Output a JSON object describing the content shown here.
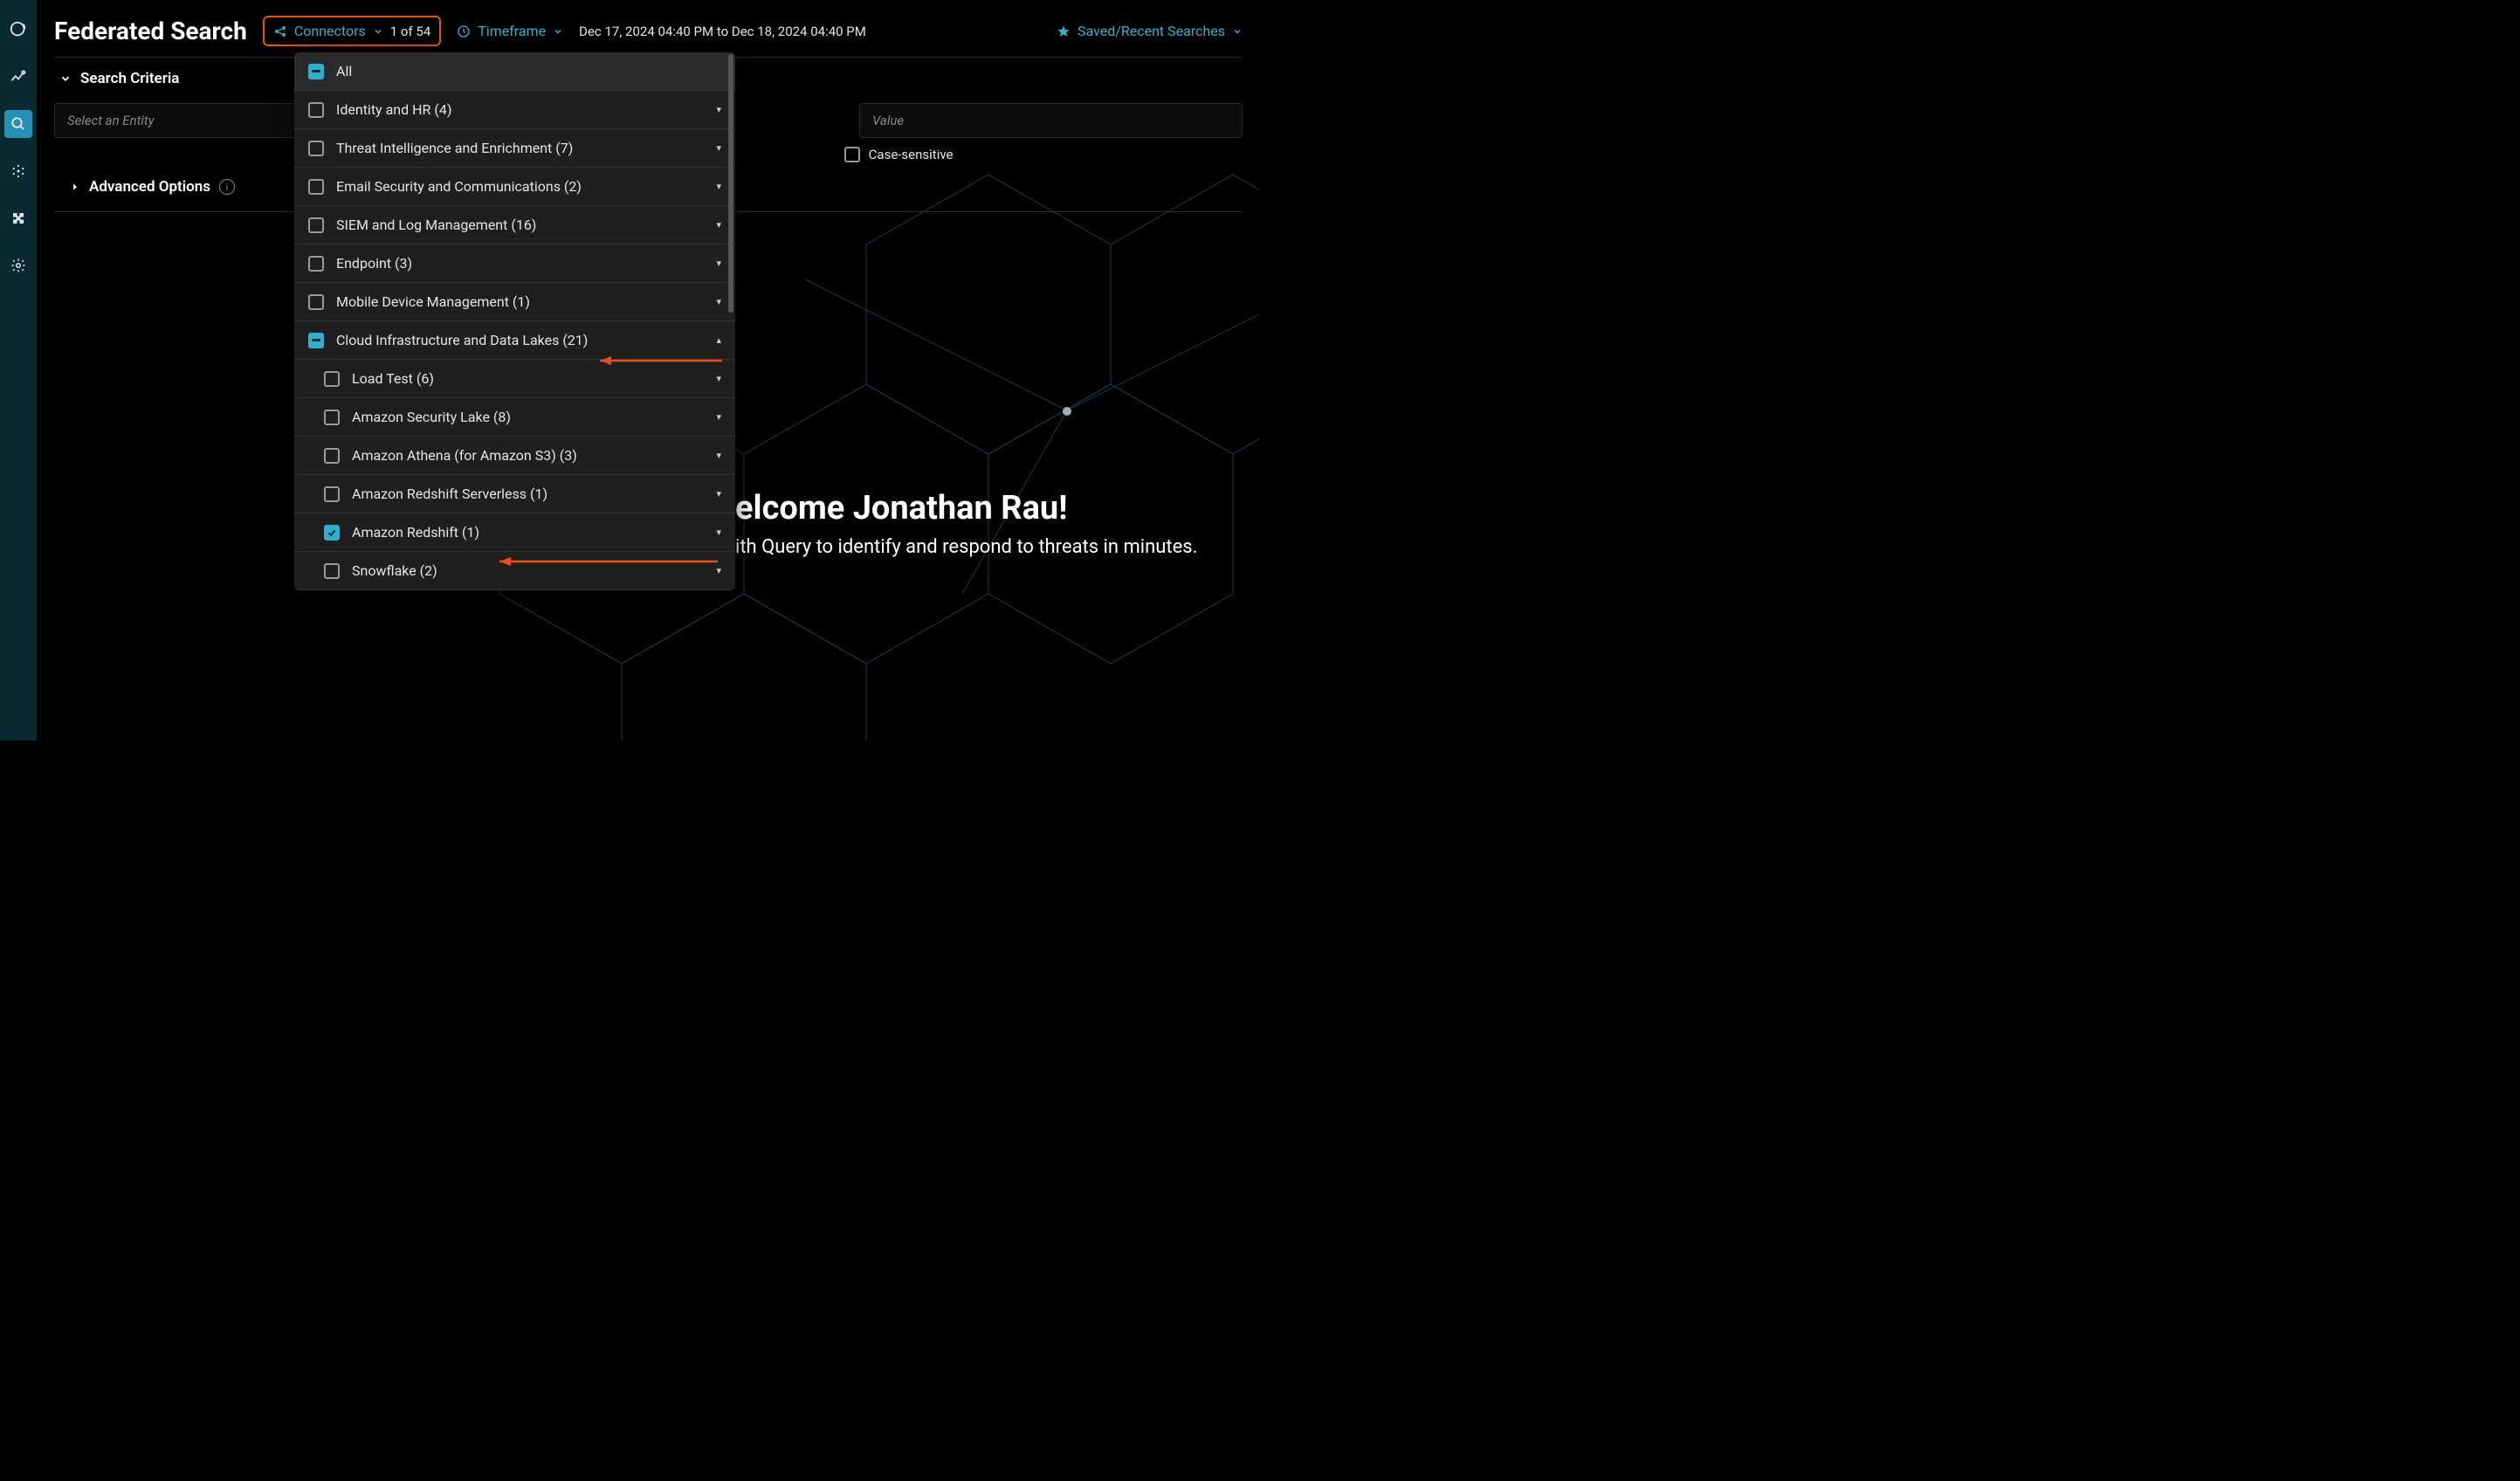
{
  "page": {
    "title": "Federated Search"
  },
  "header": {
    "connectors_label": "Connectors",
    "connectors_count": "1 of 54",
    "timeframe_label": "Timeframe",
    "timeframe_value": "Dec 17, 2024 04:40 PM to Dec 18, 2024 04:40 PM",
    "saved_label": "Saved/Recent Searches"
  },
  "sections": {
    "search_criteria": "Search Criteria",
    "advanced_options": "Advanced Options"
  },
  "fields": {
    "entity_placeholder": "Select an Entity",
    "value_placeholder": "Value",
    "case_sensitive": "Case-sensitive"
  },
  "dropdown": {
    "all": "All",
    "groups": [
      {
        "label": "Identity and HR (4)",
        "state": "unchecked",
        "expandable": true
      },
      {
        "label": "Threat Intelligence and Enrichment (7)",
        "state": "unchecked",
        "expandable": true
      },
      {
        "label": "Email Security and Communications (2)",
        "state": "unchecked",
        "expandable": true
      },
      {
        "label": "SIEM and Log Management (16)",
        "state": "unchecked",
        "expandable": true
      },
      {
        "label": "Endpoint (3)",
        "state": "unchecked",
        "expandable": true
      },
      {
        "label": "Mobile Device Management (1)",
        "state": "unchecked",
        "expandable": true
      },
      {
        "label": "Cloud Infrastructure and Data Lakes (21)",
        "state": "indeterminate",
        "expanded": true,
        "annotated": true
      }
    ],
    "subitems": [
      {
        "label": "Load Test (6)",
        "state": "unchecked"
      },
      {
        "label": "Amazon Security Lake (8)",
        "state": "unchecked"
      },
      {
        "label": "Amazon Athena (for Amazon S3) (3)",
        "state": "unchecked"
      },
      {
        "label": "Amazon Redshift Serverless (1)",
        "state": "unchecked"
      },
      {
        "label": "Amazon Redshift (1)",
        "state": "checked",
        "annotated": true
      },
      {
        "label": "Snowflake (2)",
        "state": "unchecked"
      }
    ]
  },
  "welcome": {
    "title_fragment": "elcome Jonathan Rau!",
    "sub_fragment": "ith Query to identify and respond to threats in minutes."
  },
  "colors": {
    "accent": "#2fb0cf",
    "sidebar_bg": "#0a2a32",
    "dropdown_bg": "#1f1f1f",
    "highlight_border": "#e84e1b",
    "arrow": "#e84e1b",
    "background": "#000000",
    "hex_stroke": "#1a4550"
  },
  "annotations": {
    "connectors_highlighted": true,
    "arrow_targets": [
      "Cloud Infrastructure and Data Lakes (21)",
      "Amazon Redshift (1)"
    ]
  }
}
